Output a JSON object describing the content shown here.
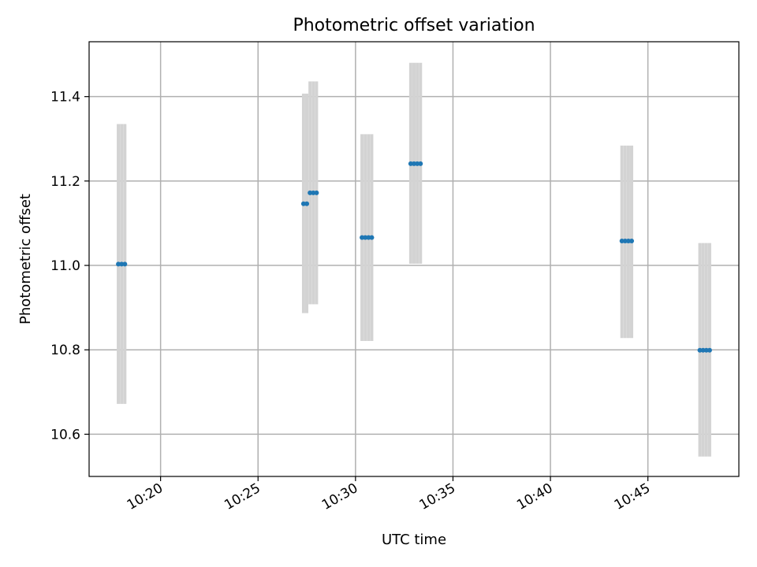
{
  "chart_data": {
    "type": "scatter",
    "title": "Photometric offset variation",
    "xlabel": "UTC time",
    "ylabel": "Photometric offset",
    "grid": true,
    "xlim": [
      "10:16:20",
      "10:49:40"
    ],
    "ylim": [
      10.5,
      11.53
    ],
    "xticks": [
      "10:20",
      "10:25",
      "10:30",
      "10:35",
      "10:40",
      "10:45"
    ],
    "yticks": [
      10.6,
      10.8,
      11.0,
      11.2,
      11.4
    ],
    "colors": {
      "point": "#1f77b4",
      "errorbar": "#d3d3d3",
      "grid": "#b0b0b0"
    },
    "clusters": [
      {
        "times": [
          "10:17:50",
          "10:18:00",
          "10:18:10"
        ],
        "value": 11.003,
        "low": 10.672,
        "high": 11.335
      },
      {
        "times": [
          "10:27:20",
          "10:27:30"
        ],
        "value": 11.146,
        "low": 10.887,
        "high": 11.407
      },
      {
        "times": [
          "10:27:40",
          "10:27:50",
          "10:28:00"
        ],
        "value": 11.172,
        "low": 10.908,
        "high": 11.436
      },
      {
        "times": [
          "10:30:20",
          "10:30:30",
          "10:30:40",
          "10:30:50"
        ],
        "value": 11.066,
        "low": 10.821,
        "high": 11.311
      },
      {
        "times": [
          "10:32:50",
          "10:33:00",
          "10:33:10",
          "10:33:20"
        ],
        "value": 11.241,
        "low": 11.004,
        "high": 11.48
      },
      {
        "times": [
          "10:43:40",
          "10:43:50",
          "10:44:00",
          "10:44:10"
        ],
        "value": 11.058,
        "low": 10.828,
        "high": 11.284
      },
      {
        "times": [
          "10:47:40",
          "10:47:50",
          "10:48:00",
          "10:48:10"
        ],
        "value": 10.799,
        "low": 10.547,
        "high": 11.053
      }
    ]
  }
}
